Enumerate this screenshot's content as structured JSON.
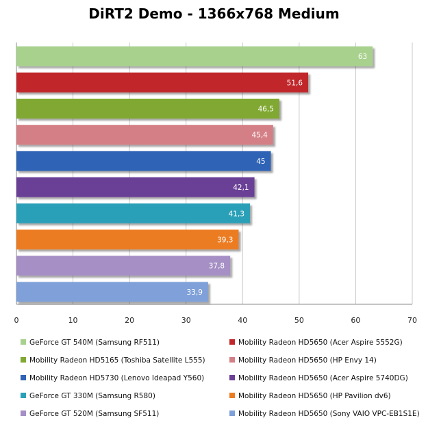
{
  "chart_data": {
    "type": "bar",
    "orientation": "horizontal",
    "title": "DiRT2 Demo - 1366x768 Medium",
    "xlim": [
      0,
      70
    ],
    "xticks": [
      0,
      10,
      20,
      30,
      40,
      50,
      60,
      70
    ],
    "grid": true,
    "legend_position": "bottom",
    "series": [
      {
        "name": "GeForce GT 540M (Samsung RF511)",
        "value": 63,
        "label": "63",
        "color": "#a9d18e"
      },
      {
        "name": "Mobility Radeon HD5650 (Acer Aspire 5552G)",
        "value": 51.6,
        "label": "51,6",
        "color": "#c0282b"
      },
      {
        "name": "Mobility Radeon HD5165 (Toshiba Satellite L555)",
        "value": 46.5,
        "label": "46,5",
        "color": "#80a832"
      },
      {
        "name": "Mobility Radeon HD5650 (HP Envy 14)",
        "value": 45.4,
        "label": "45,4",
        "color": "#d47f86"
      },
      {
        "name": "Mobility Radeon HD5730 (Lenovo Ideapad Y560)",
        "value": 45,
        "label": "45",
        "color": "#2f63b5"
      },
      {
        "name": "Mobility Radeon HD5650 (Acer Aspire 5740DG)",
        "value": 42.1,
        "label": "42,1",
        "color": "#6b3f96"
      },
      {
        "name": "GeForce GT 330M (Samsung R580)",
        "value": 41.3,
        "label": "41,3",
        "color": "#2aa0b8"
      },
      {
        "name": "Mobility Radeon HD5650 (HP Pavilion dv6)",
        "value": 39.3,
        "label": "39,3",
        "color": "#ec7c22"
      },
      {
        "name": "GeForce GT 520M (Samsung SF511)",
        "value": 37.8,
        "label": "37,8",
        "color": "#a58fc4"
      },
      {
        "name": "Mobility Radeon HD5650 (Sony VAIO VPC-EB1S1E)",
        "value": 33.9,
        "label": "33,9",
        "color": "#7fa0d8"
      }
    ]
  }
}
